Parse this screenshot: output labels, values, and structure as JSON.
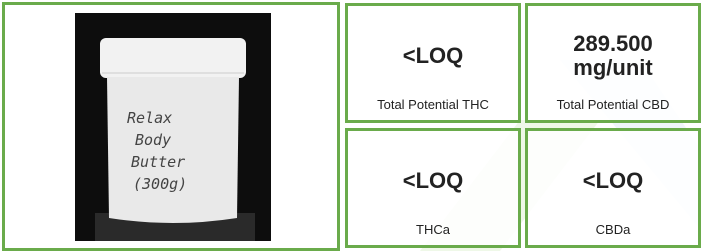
{
  "photo": {
    "label": [
      "Relax",
      "Body",
      "Butter",
      "(300g)"
    ]
  },
  "results": [
    {
      "value": "<LOQ",
      "label": "Total Potential THC"
    },
    {
      "value": "289.500 mg/unit",
      "label": "Total Potential CBD"
    },
    {
      "value": "<LOQ",
      "label": "THCa"
    },
    {
      "value": "<LOQ",
      "label": "CBDa"
    }
  ]
}
